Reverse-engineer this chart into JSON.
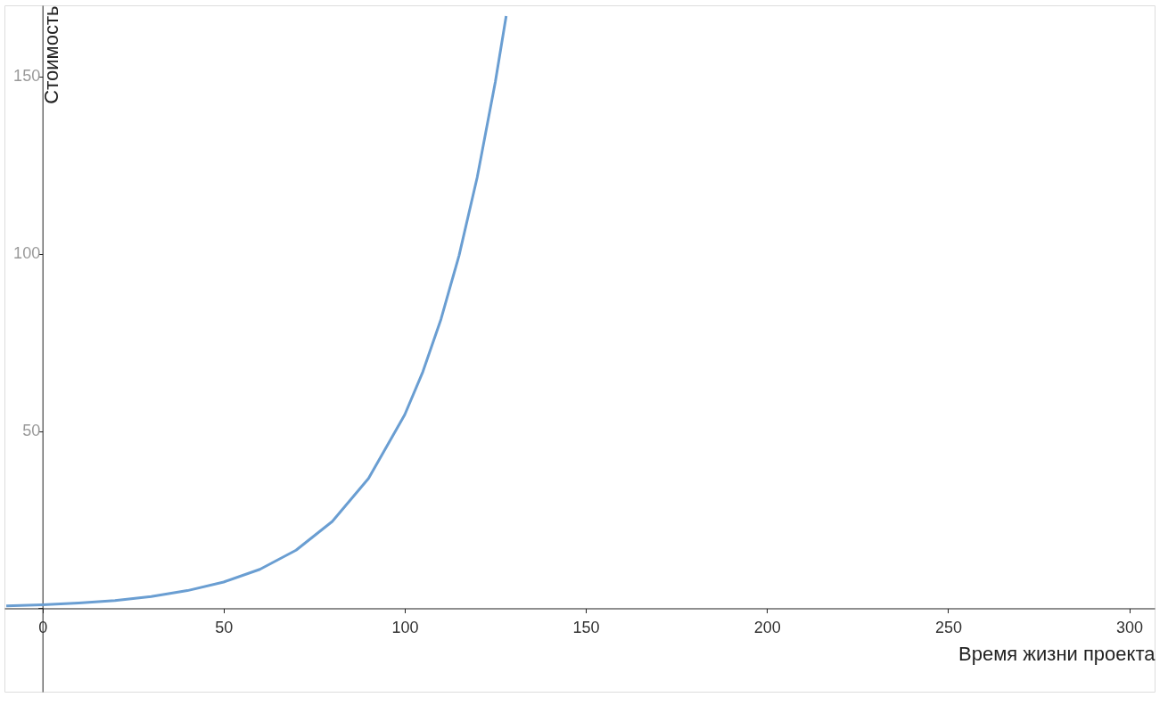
{
  "chart_data": {
    "type": "line",
    "xlabel": "Время жизни проекта",
    "ylabel": "Стоимость",
    "x": [
      -10,
      0,
      10,
      20,
      30,
      40,
      50,
      60,
      70,
      80,
      90,
      100,
      105,
      110,
      115,
      120,
      125,
      128
    ],
    "series": [
      {
        "color": "#6a9ed2",
        "values": [
          0.67,
          1,
          1.5,
          2.2,
          3.3,
          5,
          7.4,
          11,
          16.4,
          24.5,
          36.6,
          54.6,
          66.7,
          81.5,
          99.5,
          121.5,
          148.4,
          167
        ]
      }
    ],
    "xlim": [
      -10.5,
      307
    ],
    "ylim": [
      -23.5,
      170
    ],
    "xticks": [
      0,
      50,
      100,
      150,
      200,
      250,
      300
    ],
    "yticks": [
      {
        "value": 0,
        "label": null
      },
      50,
      100,
      150
    ],
    "grid": false,
    "legend": false,
    "marker": "none",
    "line_style": "solid"
  }
}
